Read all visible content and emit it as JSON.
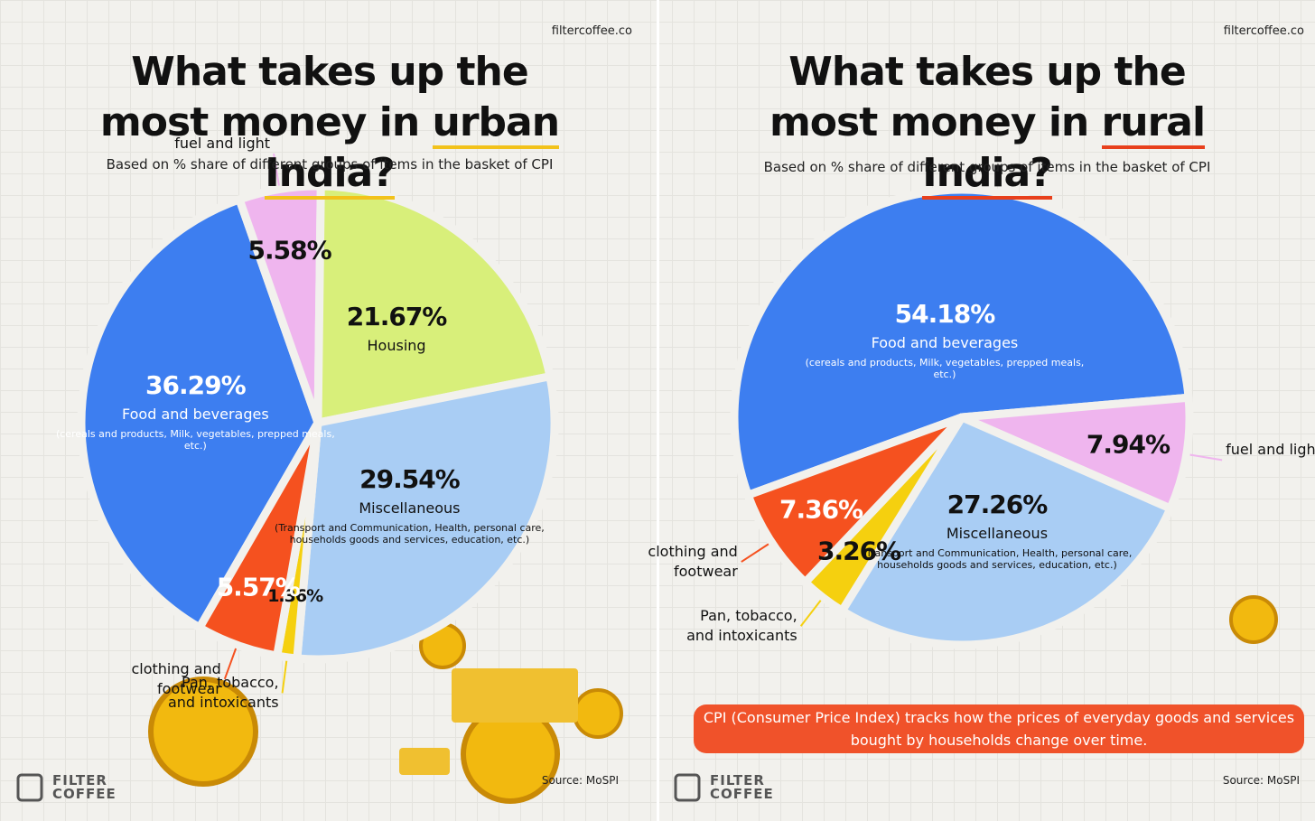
{
  "chart_data": [
    {
      "type": "pie",
      "title": "What takes up the most money in",
      "title_emphasis": "urban India?",
      "emphasis_color": "#f2c21b",
      "subtitle": "Based on % share of different groups of items in the basket of CPI",
      "categories": [
        "Food and beverages",
        "fuel and light",
        "Housing",
        "Miscellaneous",
        "Pan, tobacco, and intoxicants",
        "clothing and footwear"
      ],
      "values": [
        36.29,
        5.58,
        21.67,
        29.54,
        1.36,
        5.57
      ],
      "value_labels": [
        "36.29%",
        "5.58%",
        "21.67%",
        "29.54%",
        "1.36%",
        "5.57%"
      ],
      "descriptions": [
        "(cereals and products, Milk, vegetables, prepped meals, etc.)",
        null,
        null,
        "(Transport and Communication, Health, personal care, households goods and services, education, etc.)",
        null,
        null
      ],
      "colors": [
        "#3d7ef0",
        "#efb5ee",
        "#d8ef7a",
        "#a9cdf4",
        "#f5d00f",
        "#f5511f"
      ],
      "website": "filtercoffee.co",
      "source": "Source: MoSPI",
      "logo": [
        "FILTER",
        "COFFEE"
      ]
    },
    {
      "type": "pie",
      "title": "What takes up the most money in",
      "title_emphasis": "rural India?",
      "emphasis_color": "#e8401c",
      "subtitle": "Based on % share of different groups of items in the basket of CPI",
      "categories": [
        "Food and beverages",
        "fuel and light",
        "Miscellaneous",
        "Pan, tobacco, and intoxicants",
        "clothing and footwear"
      ],
      "values": [
        54.18,
        7.94,
        27.26,
        3.26,
        7.36
      ],
      "value_labels": [
        "54.18%",
        "7.94%",
        "27.26%",
        "3.26%",
        "7.36%"
      ],
      "descriptions": [
        "(cereals and products, Milk, vegetables, prepped meals, etc.)",
        null,
        "(Transport and Communication, Health, personal care, households goods and services, education, etc.)",
        null,
        null
      ],
      "colors": [
        "#3d7ef0",
        "#efb5ee",
        "#a9cdf4",
        "#f5d00f",
        "#f5511f"
      ],
      "website": "filtercoffee.co",
      "source": "Source: MoSPI",
      "logo": [
        "FILTER",
        "COFFEE"
      ],
      "footnote": "CPI (Consumer Price Index) tracks how the prices of everyday goods and services bought by households change over time."
    }
  ]
}
